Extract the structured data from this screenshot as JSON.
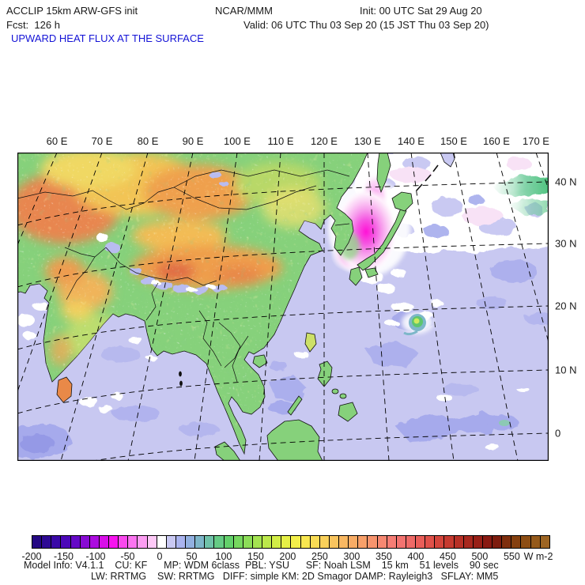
{
  "header": {
    "line1_left": "ACCLIP 15km ARW-GFS init",
    "line1_center": "NCAR/MMM",
    "line1_right": "Init: 00 UTC Sat 29 Aug 20",
    "line2_left": "Fcst:  126 h",
    "line2_right": "Valid: 06 UTC Thu 03 Sep 20 (15 JST Thu 03 Sep 20)",
    "variable_title": "UPWARD HEAT FLUX AT THE SURFACE",
    "title_color": "#1413d6"
  },
  "map": {
    "top_axis_labels": [
      "60 E",
      "70 E",
      "80 E",
      "90 E",
      "100 E",
      "110 E",
      "120 E",
      "130 E",
      "140 E",
      "150 E",
      "160 E",
      "170 E"
    ],
    "right_axis_labels": [
      "40 N",
      "30 N",
      "20 N",
      "10 N",
      "0"
    ],
    "ocean_color": "#c8c8f1",
    "anomaly_color": "#ff12d6"
  },
  "colorbar": {
    "unit": "W m-2",
    "min": -200,
    "max": 610,
    "tick_values": [
      -200,
      -150,
      -100,
      -50,
      0,
      50,
      100,
      150,
      200,
      250,
      300,
      350,
      400,
      450,
      500,
      550
    ],
    "segment_colors": [
      "#250983",
      "#2e0a94",
      "#3a09a7",
      "#4c08b8",
      "#6509c7",
      "#880bd4",
      "#ac0ce0",
      "#d90ee9",
      "#f713ef",
      "#fa49ee",
      "#fb74f0",
      "#fc9df2",
      "#fec9f7",
      "#ffffff",
      "#c9c9f3",
      "#aab4ef",
      "#92b0e0",
      "#7eb6c9",
      "#70c2a9",
      "#66cb85",
      "#63d06b",
      "#76d75f",
      "#8cdd58",
      "#a4e351",
      "#bce84b",
      "#d2ed46",
      "#e6f046",
      "#f3ef4a",
      "#f8e750",
      "#f9dc55",
      "#f9d05a",
      "#f9c45e",
      "#f9b862",
      "#f8ac66",
      "#f8a06a",
      "#f7946e",
      "#f68872",
      "#f57d75",
      "#f27370",
      "#ee6a67",
      "#e95e59",
      "#e0514a",
      "#d4453c",
      "#c63a30",
      "#b73026",
      "#a8281e",
      "#982017",
      "#891a12",
      "#7d1c0e",
      "#7e2e0d",
      "#85400f",
      "#8d4e14",
      "#955a1b",
      "#9d6523"
    ]
  },
  "footer": {
    "line1": "Model Info: V4.1.1    CU: KF      MP: WDM 6class  PBL: YSU      SF: Noah LSM    15 km    51 levels    90 sec",
    "line2": "LW: RRTMG    SW: RRTMG   DIFF: simple KM: 2D Smagor DAMP: Rayleigh3   SFLAY: MM5"
  }
}
